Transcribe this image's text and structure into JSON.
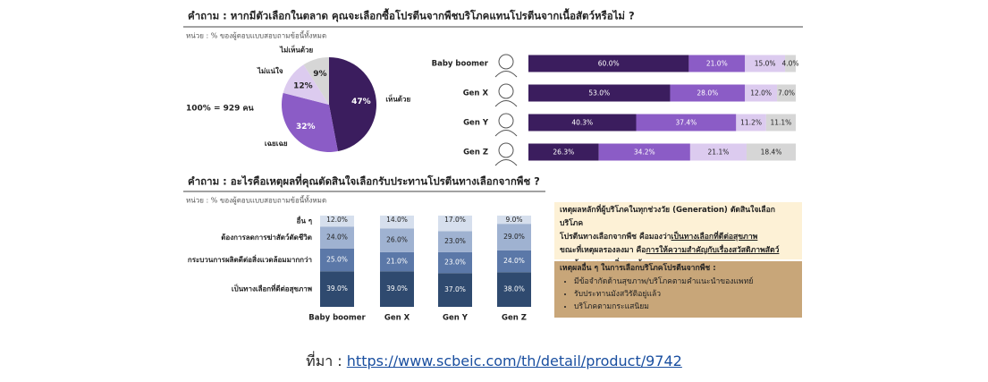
{
  "sections": [
    {
      "title": "คำถาม : หากมีตัวเลือกในตลาด คุณจะเลือกซื้อโปรตีนจากพืชบริโภคแทนโปรตีนจากเนื้อสัตว์หรือไม่ ?",
      "unit": "หน่วย : % ของผู้ตอบแบบสอบถามข้อนี้ทั้งหมด"
    },
    {
      "title": "คำถาม : อะไรคือเหตุผลที่คุณตัดสินใจเลือกรับประทานโปรตีนทางเลือกจากพืช ?",
      "unit": "หน่วย : % ของผู้ตอบแบบสอบถามข้อนี้ทั้งหมด"
    }
  ],
  "chart_data": [
    {
      "type": "pie",
      "annotation": "100% = 929 คน",
      "categories": [
        "เห็นด้วย",
        "เฉยเฉย",
        "ไม่แน่ใจ",
        "ไม่เห็นด้วย"
      ],
      "values": [
        47,
        32,
        12,
        9
      ],
      "value_labels": [
        "47%",
        "32%",
        "12%",
        "9%"
      ],
      "colors": [
        "#3b1d5e",
        "#8b5cc6",
        "#dccbef",
        "#d6d6d6"
      ]
    },
    {
      "type": "hbar-stacked",
      "categories": [
        "Baby boomer",
        "Gen X",
        "Gen Y",
        "Gen Z"
      ],
      "xlim": [
        0,
        100
      ],
      "series": [
        {
          "color": "#3b1d5e",
          "values": [
            60,
            53,
            40.3,
            26.3
          ],
          "value_labels": [
            "60.0%",
            "53.0%",
            "40.3%",
            "26.3%"
          ]
        },
        {
          "color": "#8b5cc6",
          "values": [
            21,
            28,
            37.4,
            34.2
          ],
          "value_labels": [
            "21.0%",
            "28.0%",
            "37.4%",
            "34.2%"
          ]
        },
        {
          "color": "#dccbef",
          "values": [
            15,
            12,
            11.2,
            21.1
          ],
          "value_labels": [
            "15.0%",
            "12.0%",
            "11.2%",
            "21.1%"
          ]
        },
        {
          "color": "#d6d6d6",
          "values": [
            4,
            7,
            11.1,
            18.4
          ],
          "value_labels": [
            "4.0%",
            "7.0%",
            "11.1%",
            "18.4%"
          ]
        }
      ]
    },
    {
      "type": "vbar-stacked",
      "categories": [
        "Baby boomer",
        "Gen X",
        "Gen Y",
        "Gen Z"
      ],
      "ylim": [
        0,
        100
      ],
      "series": [
        {
          "name": "เป็นทางเลือกที่ดีต่อสุขภาพ",
          "color": "#2f4a6f",
          "values": [
            39,
            39,
            37,
            38
          ],
          "value_labels": [
            "39.0%",
            "39.0%",
            "37.0%",
            "38.0%"
          ]
        },
        {
          "name": "กระบวนการผลิตดีต่อสิ่งแวดล้อมมากกว่า",
          "color": "#5b78a8",
          "values": [
            25,
            21,
            23,
            24
          ],
          "value_labels": [
            "25.0%",
            "21.0%",
            "23.0%",
            "24.0%"
          ]
        },
        {
          "name": "ต้องการลดการฆ่าสัตว์ตัดชีวิต",
          "color": "#9fb2d1",
          "values": [
            24,
            26,
            23,
            29
          ],
          "value_labels": [
            "24.0%",
            "26.0%",
            "23.0%",
            "29.0%"
          ]
        },
        {
          "name": "อื่น ๆ",
          "color": "#d6dfed",
          "values": [
            12,
            14,
            17,
            9
          ],
          "value_labels": [
            "12.0%",
            "14.0%",
            "17.0%",
            "9.0%"
          ]
        }
      ]
    }
  ],
  "box1": {
    "lines": [
      [
        {
          "text": "เหตุผลหลักที่ผู้บริโภคในทุกช่วงวัย (Generation) ตัดสินใจเลือกบริโภค"
        }
      ],
      [
        {
          "text": "โปรตีนทางเลือกจากพืช คือมองว่า"
        },
        {
          "text": "เป็นทางเลือกที่ดีต่อสุขภาพ",
          "underline": true
        }
      ],
      [
        {
          "text": "ขณะที่เหตุผลรองลงมา คือ"
        },
        {
          "text": "การให้ความสำคัญกับเรื่องสวัสดิภาพสัตว์",
          "underline": true
        }
      ],
      [
        {
          "text": "และ"
        },
        {
          "text": "ต้องการดูแลสิ่งแวดล้อม",
          "underline": true
        }
      ]
    ]
  },
  "box2": {
    "title": "เหตุผลอื่น ๆ ในการเลือกบริโภคโปรตีนจากพืช :",
    "items": [
      "มีข้อจำกัดด้านสุขภาพ/บริโภคตามคำแนะนำของแพทย์",
      "รับประทานมังสวิรัติอยู่แล้ว",
      "บริโภคตามกระแสนิยม"
    ]
  },
  "source": {
    "label": "ที่มา : ",
    "link": "https://www.scbeic.com/th/detail/product/9742"
  }
}
